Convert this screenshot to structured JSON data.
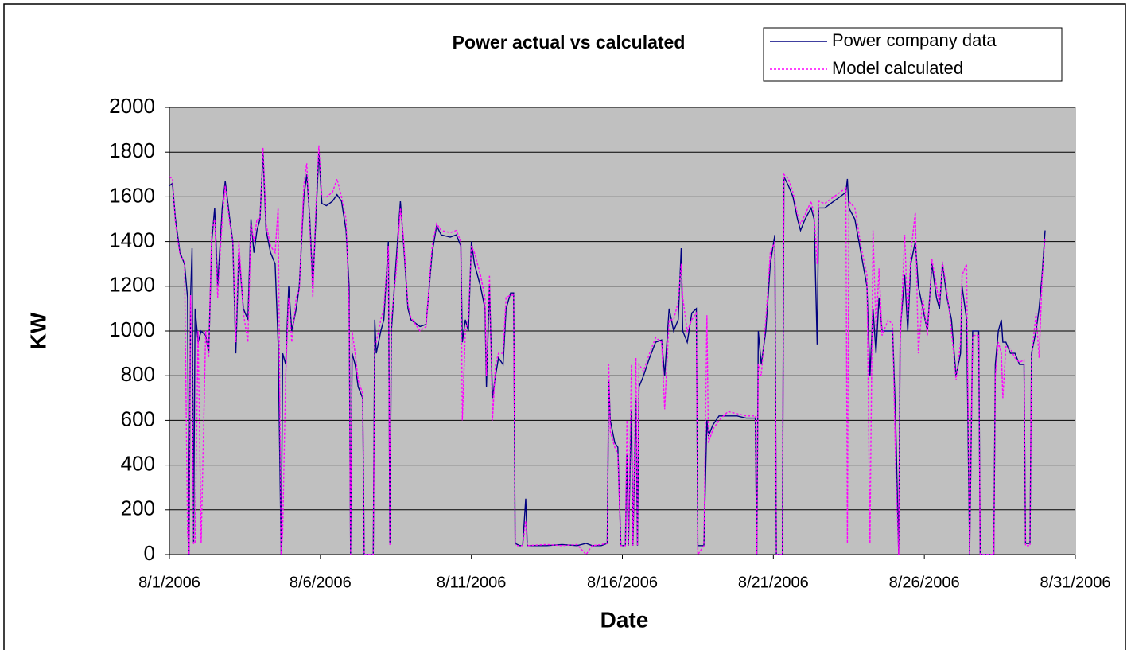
{
  "chart_data": {
    "type": "line",
    "title": "Power actual vs calculated",
    "xlabel": "Date",
    "ylabel": "KW",
    "xlim": [
      1,
      31
    ],
    "xticks": [
      {
        "value": 1,
        "label": "8/1/2006"
      },
      {
        "value": 6,
        "label": "8/6/2006"
      },
      {
        "value": 11,
        "label": "8/11/2006"
      },
      {
        "value": 16,
        "label": "8/16/2006"
      },
      {
        "value": 21,
        "label": "8/21/2006"
      },
      {
        "value": 26,
        "label": "8/26/2006"
      },
      {
        "value": 31,
        "label": "8/31/2006"
      }
    ],
    "ylim": [
      0,
      2000
    ],
    "yticks": [
      0,
      200,
      400,
      600,
      800,
      1000,
      1200,
      1400,
      1600,
      1800,
      2000
    ],
    "grid": true,
    "legend": "top-right",
    "x": [
      1.0,
      1.1,
      1.2,
      1.35,
      1.5,
      1.6,
      1.65,
      1.7,
      1.75,
      1.8,
      1.85,
      1.95,
      2.05,
      2.2,
      2.3,
      2.4,
      2.5,
      2.6,
      2.75,
      2.85,
      3.0,
      3.1,
      3.2,
      3.3,
      3.45,
      3.6,
      3.7,
      3.8,
      3.9,
      4.0,
      4.1,
      4.2,
      4.35,
      4.5,
      4.6,
      4.7,
      4.75,
      4.85,
      4.95,
      5.05,
      5.2,
      5.3,
      5.45,
      5.55,
      5.65,
      5.75,
      5.85,
      5.95,
      6.05,
      6.2,
      6.4,
      6.55,
      6.7,
      6.85,
      6.95,
      7.0,
      7.05,
      7.15,
      7.25,
      7.4,
      7.45,
      7.6,
      7.75,
      7.8,
      7.85,
      8.0,
      8.1,
      8.25,
      8.3,
      8.35,
      8.5,
      8.65,
      8.75,
      8.9,
      9.0,
      9.3,
      9.5,
      9.7,
      9.85,
      10.0,
      10.3,
      10.5,
      10.65,
      10.7,
      10.8,
      10.9,
      11.0,
      11.1,
      11.3,
      11.45,
      11.5,
      11.6,
      11.7,
      11.8,
      11.9,
      12.05,
      12.15,
      12.3,
      12.4,
      12.45,
      12.6,
      12.7,
      12.8,
      12.85,
      13.5,
      14.0,
      14.5,
      14.8,
      15.0,
      15.3,
      15.5,
      15.55,
      15.6,
      15.75,
      15.85,
      15.95,
      16.1,
      16.15,
      16.2,
      16.3,
      16.35,
      16.45,
      16.5,
      16.55,
      16.7,
      16.9,
      17.1,
      17.3,
      17.4,
      17.55,
      17.7,
      17.85,
      17.95,
      18.0,
      18.15,
      18.3,
      18.45,
      18.5,
      18.7,
      18.8,
      18.85,
      19.0,
      19.2,
      19.5,
      19.8,
      20.1,
      20.4,
      20.45,
      20.5,
      20.6,
      20.75,
      20.9,
      21.05,
      21.1,
      21.3,
      21.35,
      21.5,
      21.65,
      21.8,
      21.9,
      22.05,
      22.25,
      22.35,
      22.45,
      22.5,
      22.7,
      23.0,
      23.2,
      23.4,
      23.45,
      23.5,
      23.7,
      23.9,
      24.1,
      24.2,
      24.3,
      24.4,
      24.5,
      24.6,
      24.8,
      24.95,
      25.05,
      25.15,
      25.2,
      25.35,
      25.45,
      25.55,
      25.7,
      25.8,
      25.95,
      26.1,
      26.25,
      26.4,
      26.5,
      26.6,
      26.75,
      26.9,
      27.05,
      27.2,
      27.25,
      27.4,
      27.5,
      27.6,
      27.8,
      27.85,
      28.0,
      28.3,
      28.35,
      28.45,
      28.55,
      28.6,
      28.7,
      28.85,
      29.0,
      29.15,
      29.3,
      29.35,
      29.5,
      29.55,
      29.7,
      29.8,
      29.9,
      30.0
    ],
    "series": [
      {
        "name": "Power company data",
        "color": "#000080",
        "dash": false,
        "values": [
          1650,
          1660,
          1500,
          1350,
          1300,
          1150,
          0,
          1150,
          1370,
          50,
          1100,
          950,
          1000,
          980,
          900,
          1400,
          1550,
          1200,
          1550,
          1670,
          1500,
          1400,
          900,
          1350,
          1100,
          1050,
          1500,
          1350,
          1450,
          1500,
          1800,
          1450,
          1350,
          1300,
          950,
          0,
          900,
          850,
          1200,
          1000,
          1100,
          1200,
          1600,
          1700,
          1500,
          1200,
          1500,
          1800,
          1570,
          1560,
          1580,
          1610,
          1580,
          1450,
          1200,
          0,
          900,
          850,
          750,
          700,
          0,
          0,
          0,
          1050,
          900,
          1000,
          1050,
          1400,
          50,
          1000,
          1300,
          1580,
          1400,
          1100,
          1050,
          1020,
          1030,
          1350,
          1470,
          1430,
          1420,
          1430,
          1380,
          950,
          1050,
          1000,
          1400,
          1300,
          1200,
          1100,
          750,
          1200,
          700,
          800,
          880,
          850,
          1100,
          1170,
          1170,
          50,
          40,
          40,
          250,
          40,
          40,
          45,
          40,
          50,
          40,
          40,
          50,
          780,
          600,
          500,
          480,
          40,
          40,
          450,
          40,
          650,
          40,
          700,
          40,
          750,
          800,
          880,
          950,
          960,
          800,
          1100,
          1000,
          1050,
          1370,
          1000,
          950,
          1080,
          1100,
          40,
          40,
          600,
          530,
          580,
          620,
          620,
          620,
          610,
          610,
          0,
          1000,
          850,
          1000,
          1300,
          1430,
          0,
          0,
          1690,
          1650,
          1600,
          1500,
          1450,
          1500,
          1550,
          1500,
          940,
          1550,
          1550,
          1580,
          1600,
          1620,
          1680,
          1550,
          1500,
          1350,
          1200,
          800,
          1100,
          900,
          1150,
          1000,
          1000,
          1000,
          600,
          0,
          1000,
          1250,
          1000,
          1300,
          1400,
          1200,
          1100,
          1000,
          1300,
          1150,
          1100,
          1300,
          1150,
          1050,
          800,
          900,
          1200,
          1050,
          0,
          1000,
          1000,
          0,
          0,
          0,
          850,
          1000,
          1050,
          950,
          950,
          900,
          900,
          850,
          850,
          50,
          50,
          900,
          1000,
          1100,
          1250,
          1450
        ]
      },
      {
        "name": "Model calculated",
        "color": "#ff00ff",
        "dash": true,
        "values": [
          1690,
          1680,
          1480,
          1340,
          1310,
          100,
          0,
          1160,
          900,
          50,
          50,
          1000,
          50,
          1000,
          880,
          1450,
          1500,
          1150,
          1500,
          1650,
          1480,
          1400,
          950,
          1400,
          1080,
          950,
          1480,
          1400,
          1500,
          1500,
          1820,
          1480,
          1380,
          1350,
          1550,
          0,
          100,
          800,
          1150,
          950,
          1150,
          1180,
          1650,
          1750,
          1480,
          1150,
          1550,
          1830,
          1600,
          1600,
          1620,
          1680,
          1600,
          1500,
          1100,
          0,
          1000,
          900,
          780,
          720,
          0,
          0,
          0,
          950,
          950,
          1050,
          1100,
          1380,
          40,
          1050,
          1250,
          1550,
          1420,
          1120,
          1060,
          1000,
          1020,
          1380,
          1480,
          1450,
          1440,
          1450,
          1400,
          600,
          1000,
          1050,
          1380,
          1350,
          1250,
          1150,
          800,
          1250,
          600,
          850,
          900,
          900,
          1150,
          1160,
          1160,
          40,
          40,
          40,
          150,
          40,
          45,
          40,
          45,
          0,
          40,
          45,
          50,
          850,
          550,
          480,
          450,
          40,
          40,
          600,
          40,
          850,
          40,
          880,
          40,
          850,
          820,
          900,
          970,
          950,
          650,
          1050,
          1050,
          1130,
          1300,
          1150,
          1000,
          1050,
          1080,
          0,
          40,
          1070,
          500,
          560,
          600,
          640,
          630,
          620,
          620,
          0,
          850,
          800,
          1050,
          1350,
          1400,
          0,
          0,
          1700,
          1680,
          1620,
          1520,
          1480,
          1520,
          1580,
          1520,
          1300,
          1580,
          1570,
          1600,
          1620,
          1640,
          50,
          1580,
          1550,
          1380,
          1250,
          50,
          1450,
          1000,
          1280,
          980,
          1050,
          1030,
          400,
          0,
          950,
          1430,
          1050,
          1350,
          1530,
          900,
          1150,
          980,
          1320,
          1200,
          1120,
          1310,
          1180,
          1000,
          780,
          950,
          1250,
          1300,
          0,
          980,
          980,
          0,
          0,
          0,
          800,
          950,
          900,
          700,
          930,
          920,
          880,
          860,
          870,
          40,
          40,
          880,
          1080,
          880,
          1230,
          1420
        ]
      }
    ]
  }
}
